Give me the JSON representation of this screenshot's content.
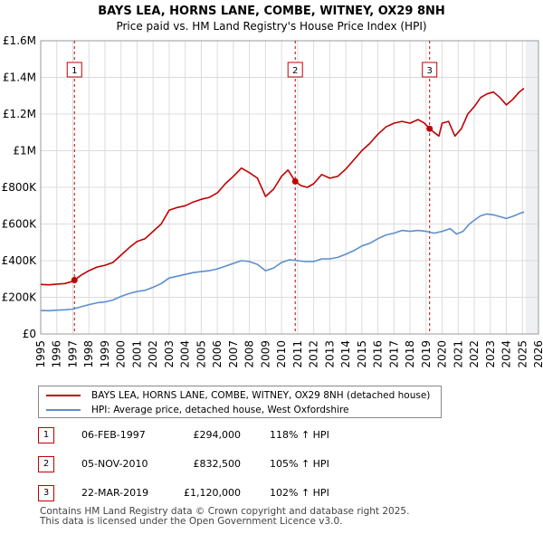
{
  "colors": {
    "price_paid": "#c00000",
    "hpi": "#5b8fcf",
    "grid": "#dcdcdc",
    "marker_border": "#c00000"
  },
  "chart_data": {
    "type": "line",
    "title": "BAYS LEA, HORNS LANE, COMBE, WITNEY, OX29 8NH",
    "subtitle": "Price paid vs. HM Land Registry's House Price Index (HPI)",
    "xlim": [
      1995,
      2026
    ],
    "ylim": [
      0,
      1600000
    ],
    "x_ticks": [
      "1995",
      "1996",
      "1997",
      "1998",
      "1999",
      "2000",
      "2001",
      "2002",
      "2003",
      "2004",
      "2005",
      "2006",
      "2007",
      "2008",
      "2009",
      "2010",
      "2011",
      "2012",
      "2013",
      "2014",
      "2015",
      "2016",
      "2017",
      "2018",
      "2019",
      "2020",
      "2021",
      "2022",
      "2023",
      "2024",
      "2025",
      "2026"
    ],
    "y_ticks": [
      {
        "value": 0,
        "label": "£0"
      },
      {
        "value": 200000,
        "label": "£200K"
      },
      {
        "value": 400000,
        "label": "£400K"
      },
      {
        "value": 600000,
        "label": "£600K"
      },
      {
        "value": 800000,
        "label": "£800K"
      },
      {
        "value": 1000000,
        "label": "£1M"
      },
      {
        "value": 1200000,
        "label": "£1.2M"
      },
      {
        "value": 1400000,
        "label": "£1.4M"
      },
      {
        "value": 1600000,
        "label": "£1.6M"
      }
    ],
    "future_start": 2025.2,
    "series": [
      {
        "name": "BAYS LEA, HORNS LANE, COMBE, WITNEY, OX29 8NH (detached house)",
        "color": "#c00000",
        "points": [
          [
            1995.0,
            270000
          ],
          [
            1995.5,
            268000
          ],
          [
            1996.0,
            272000
          ],
          [
            1996.5,
            275000
          ],
          [
            1996.9,
            285000
          ],
          [
            1997.1,
            294000
          ],
          [
            1997.5,
            320000
          ],
          [
            1998.0,
            345000
          ],
          [
            1998.5,
            365000
          ],
          [
            1999.0,
            375000
          ],
          [
            1999.5,
            390000
          ],
          [
            2000.0,
            430000
          ],
          [
            2000.5,
            470000
          ],
          [
            2001.0,
            505000
          ],
          [
            2001.5,
            520000
          ],
          [
            2002.0,
            560000
          ],
          [
            2002.5,
            600000
          ],
          [
            2003.0,
            675000
          ],
          [
            2003.5,
            690000
          ],
          [
            2004.0,
            700000
          ],
          [
            2004.5,
            720000
          ],
          [
            2005.0,
            735000
          ],
          [
            2005.5,
            745000
          ],
          [
            2006.0,
            770000
          ],
          [
            2006.5,
            820000
          ],
          [
            2007.0,
            860000
          ],
          [
            2007.5,
            905000
          ],
          [
            2008.0,
            880000
          ],
          [
            2008.5,
            850000
          ],
          [
            2009.0,
            750000
          ],
          [
            2009.5,
            790000
          ],
          [
            2010.0,
            860000
          ],
          [
            2010.4,
            895000
          ],
          [
            2010.85,
            832500
          ],
          [
            2011.2,
            810000
          ],
          [
            2011.6,
            800000
          ],
          [
            2012.0,
            820000
          ],
          [
            2012.5,
            870000
          ],
          [
            2013.0,
            850000
          ],
          [
            2013.5,
            860000
          ],
          [
            2014.0,
            900000
          ],
          [
            2014.5,
            950000
          ],
          [
            2015.0,
            1000000
          ],
          [
            2015.5,
            1040000
          ],
          [
            2016.0,
            1090000
          ],
          [
            2016.5,
            1130000
          ],
          [
            2017.0,
            1150000
          ],
          [
            2017.5,
            1160000
          ],
          [
            2018.0,
            1150000
          ],
          [
            2018.5,
            1170000
          ],
          [
            2018.9,
            1150000
          ],
          [
            2019.22,
            1120000
          ],
          [
            2019.5,
            1100000
          ],
          [
            2019.8,
            1080000
          ],
          [
            2020.0,
            1150000
          ],
          [
            2020.4,
            1160000
          ],
          [
            2020.8,
            1080000
          ],
          [
            2021.2,
            1120000
          ],
          [
            2021.6,
            1200000
          ],
          [
            2022.0,
            1240000
          ],
          [
            2022.4,
            1290000
          ],
          [
            2022.8,
            1310000
          ],
          [
            2023.2,
            1320000
          ],
          [
            2023.6,
            1290000
          ],
          [
            2024.0,
            1250000
          ],
          [
            2024.4,
            1280000
          ],
          [
            2024.8,
            1320000
          ],
          [
            2025.1,
            1340000
          ]
        ]
      },
      {
        "name": "HPI: Average price, detached house, West Oxfordshire",
        "color": "#5b8fcf",
        "points": [
          [
            1995.0,
            128000
          ],
          [
            1995.5,
            127000
          ],
          [
            1996.0,
            130000
          ],
          [
            1996.5,
            132000
          ],
          [
            1997.0,
            136000
          ],
          [
            1997.5,
            148000
          ],
          [
            1998.0,
            160000
          ],
          [
            1998.5,
            170000
          ],
          [
            1999.0,
            175000
          ],
          [
            1999.5,
            185000
          ],
          [
            2000.0,
            205000
          ],
          [
            2000.5,
            220000
          ],
          [
            2001.0,
            232000
          ],
          [
            2001.5,
            238000
          ],
          [
            2002.0,
            255000
          ],
          [
            2002.5,
            275000
          ],
          [
            2003.0,
            305000
          ],
          [
            2003.5,
            315000
          ],
          [
            2004.0,
            325000
          ],
          [
            2004.5,
            335000
          ],
          [
            2005.0,
            340000
          ],
          [
            2005.5,
            345000
          ],
          [
            2006.0,
            355000
          ],
          [
            2006.5,
            370000
          ],
          [
            2007.0,
            385000
          ],
          [
            2007.5,
            400000
          ],
          [
            2008.0,
            395000
          ],
          [
            2008.5,
            380000
          ],
          [
            2009.0,
            345000
          ],
          [
            2009.5,
            360000
          ],
          [
            2010.0,
            390000
          ],
          [
            2010.5,
            405000
          ],
          [
            2011.0,
            400000
          ],
          [
            2011.5,
            395000
          ],
          [
            2012.0,
            395000
          ],
          [
            2012.5,
            410000
          ],
          [
            2013.0,
            410000
          ],
          [
            2013.5,
            418000
          ],
          [
            2014.0,
            435000
          ],
          [
            2014.5,
            455000
          ],
          [
            2015.0,
            480000
          ],
          [
            2015.5,
            495000
          ],
          [
            2016.0,
            520000
          ],
          [
            2016.5,
            540000
          ],
          [
            2017.0,
            550000
          ],
          [
            2017.5,
            565000
          ],
          [
            2018.0,
            560000
          ],
          [
            2018.5,
            565000
          ],
          [
            2019.0,
            560000
          ],
          [
            2019.5,
            550000
          ],
          [
            2020.0,
            560000
          ],
          [
            2020.5,
            575000
          ],
          [
            2020.9,
            545000
          ],
          [
            2021.3,
            560000
          ],
          [
            2021.7,
            600000
          ],
          [
            2022.0,
            620000
          ],
          [
            2022.4,
            645000
          ],
          [
            2022.8,
            655000
          ],
          [
            2023.2,
            650000
          ],
          [
            2023.6,
            640000
          ],
          [
            2024.0,
            630000
          ],
          [
            2024.5,
            645000
          ],
          [
            2024.9,
            660000
          ],
          [
            2025.1,
            665000
          ]
        ]
      }
    ],
    "annotations": [
      {
        "label": "1",
        "x": 1997.1,
        "y": 294000
      },
      {
        "label": "2",
        "x": 2010.85,
        "y": 832500
      },
      {
        "label": "3",
        "x": 2019.22,
        "y": 1120000
      }
    ]
  },
  "legend": {
    "items": [
      {
        "label": "BAYS LEA, HORNS LANE, COMBE, WITNEY, OX29 8NH (detached house)",
        "color": "#c00000"
      },
      {
        "label": "HPI: Average price, detached house, West Oxfordshire",
        "color": "#5b8fcf"
      }
    ]
  },
  "sales": [
    {
      "num": "1",
      "date": "06-FEB-1997",
      "price": "£294,000",
      "hpi": "118% ↑ HPI"
    },
    {
      "num": "2",
      "date": "05-NOV-2010",
      "price": "£832,500",
      "hpi": "105% ↑ HPI"
    },
    {
      "num": "3",
      "date": "22-MAR-2019",
      "price": "£1,120,000",
      "hpi": "102% ↑ HPI"
    }
  ],
  "footer": {
    "line1": "Contains HM Land Registry data © Crown copyright and database right 2025.",
    "line2": "This data is licensed under the Open Government Licence v3.0."
  }
}
